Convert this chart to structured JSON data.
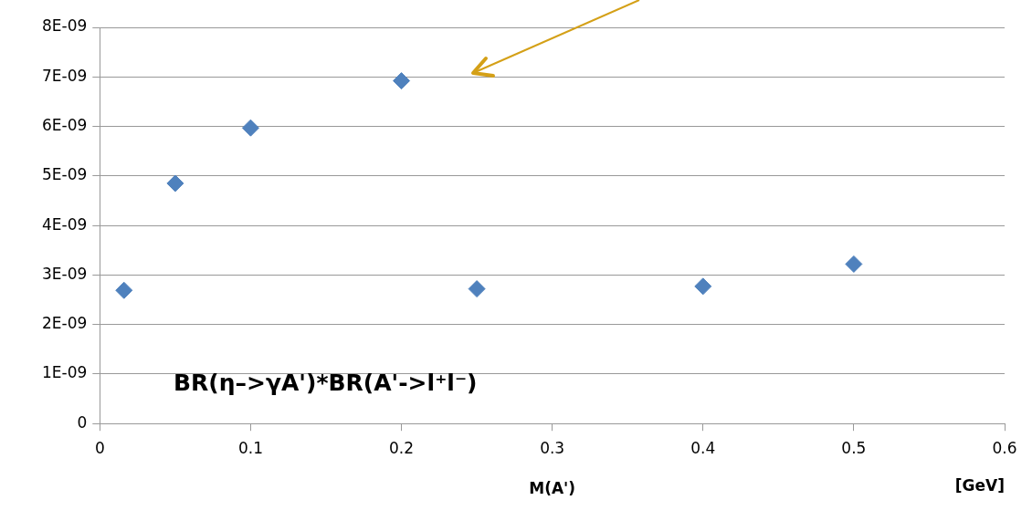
{
  "chart_data": {
    "type": "scatter",
    "xlabel": "M(A')",
    "annotations": [
      "BR(η–>γA')*BR(A'->l⁺l⁻)",
      "[GeV]"
    ],
    "x": [
      0.016,
      0.05,
      0.1,
      0.2,
      0.25,
      0.4,
      0.5
    ],
    "series": [
      {
        "color": "#4f81bd",
        "values": [
          2.69e-09,
          4.85e-09,
          5.97e-09,
          6.92e-09,
          2.72e-09,
          2.77e-09,
          3.22e-09
        ]
      }
    ],
    "xlim": [
      0,
      0.6
    ],
    "xticks": [
      0,
      0.1,
      0.2,
      0.3,
      0.4,
      0.5,
      0.6
    ],
    "ylim": [
      0,
      8e-09
    ],
    "yticks": [
      0,
      {
        "value": 1e-09,
        "label": "1E-09"
      },
      {
        "value": 2e-09,
        "label": "2E-09"
      },
      {
        "value": 3e-09,
        "label": "3E-09"
      },
      {
        "value": 4e-09,
        "label": "4E-09"
      },
      {
        "value": 5e-09,
        "label": "5E-09"
      },
      {
        "value": 6e-09,
        "label": "6E-09"
      },
      {
        "value": 7e-09,
        "label": "7E-09"
      },
      {
        "value": 8e-09,
        "label": "8E-09"
      }
    ],
    "grid": "y",
    "marker": "diamond",
    "legend": false
  }
}
